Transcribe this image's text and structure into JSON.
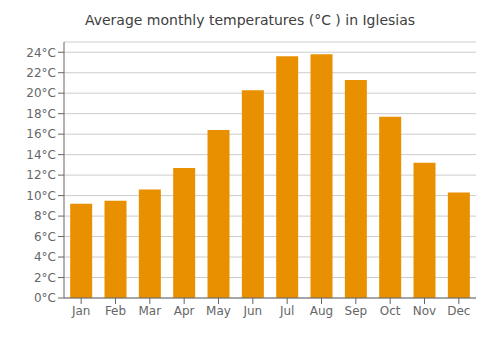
{
  "chart_data": {
    "type": "bar",
    "title": "Average monthly temperatures (°C ) in Iglesias",
    "categories": [
      "Jan",
      "Feb",
      "Mar",
      "Apr",
      "May",
      "Jun",
      "Jul",
      "Aug",
      "Sep",
      "Oct",
      "Nov",
      "Dec"
    ],
    "values": [
      9.2,
      9.5,
      10.6,
      12.7,
      16.4,
      20.3,
      23.6,
      23.8,
      21.3,
      17.7,
      13.2,
      10.3
    ],
    "color": "#E89000",
    "ylim": [
      0,
      25
    ],
    "yticks": [
      {
        "value": 0,
        "label": "0°C"
      },
      {
        "value": 2,
        "label": "2°C"
      },
      {
        "value": 4,
        "label": "4°C"
      },
      {
        "value": 6,
        "label": "6°C"
      },
      {
        "value": 8,
        "label": "8°C"
      },
      {
        "value": 10,
        "label": "10°C"
      },
      {
        "value": 12,
        "label": "12°C"
      },
      {
        "value": 14,
        "label": "14°C"
      },
      {
        "value": 16,
        "label": "16°C"
      },
      {
        "value": 18,
        "label": "18°C"
      },
      {
        "value": 20,
        "label": "20°C"
      },
      {
        "value": 22,
        "label": "22°C"
      },
      {
        "value": 24,
        "label": "24°C"
      }
    ],
    "grid": true
  }
}
